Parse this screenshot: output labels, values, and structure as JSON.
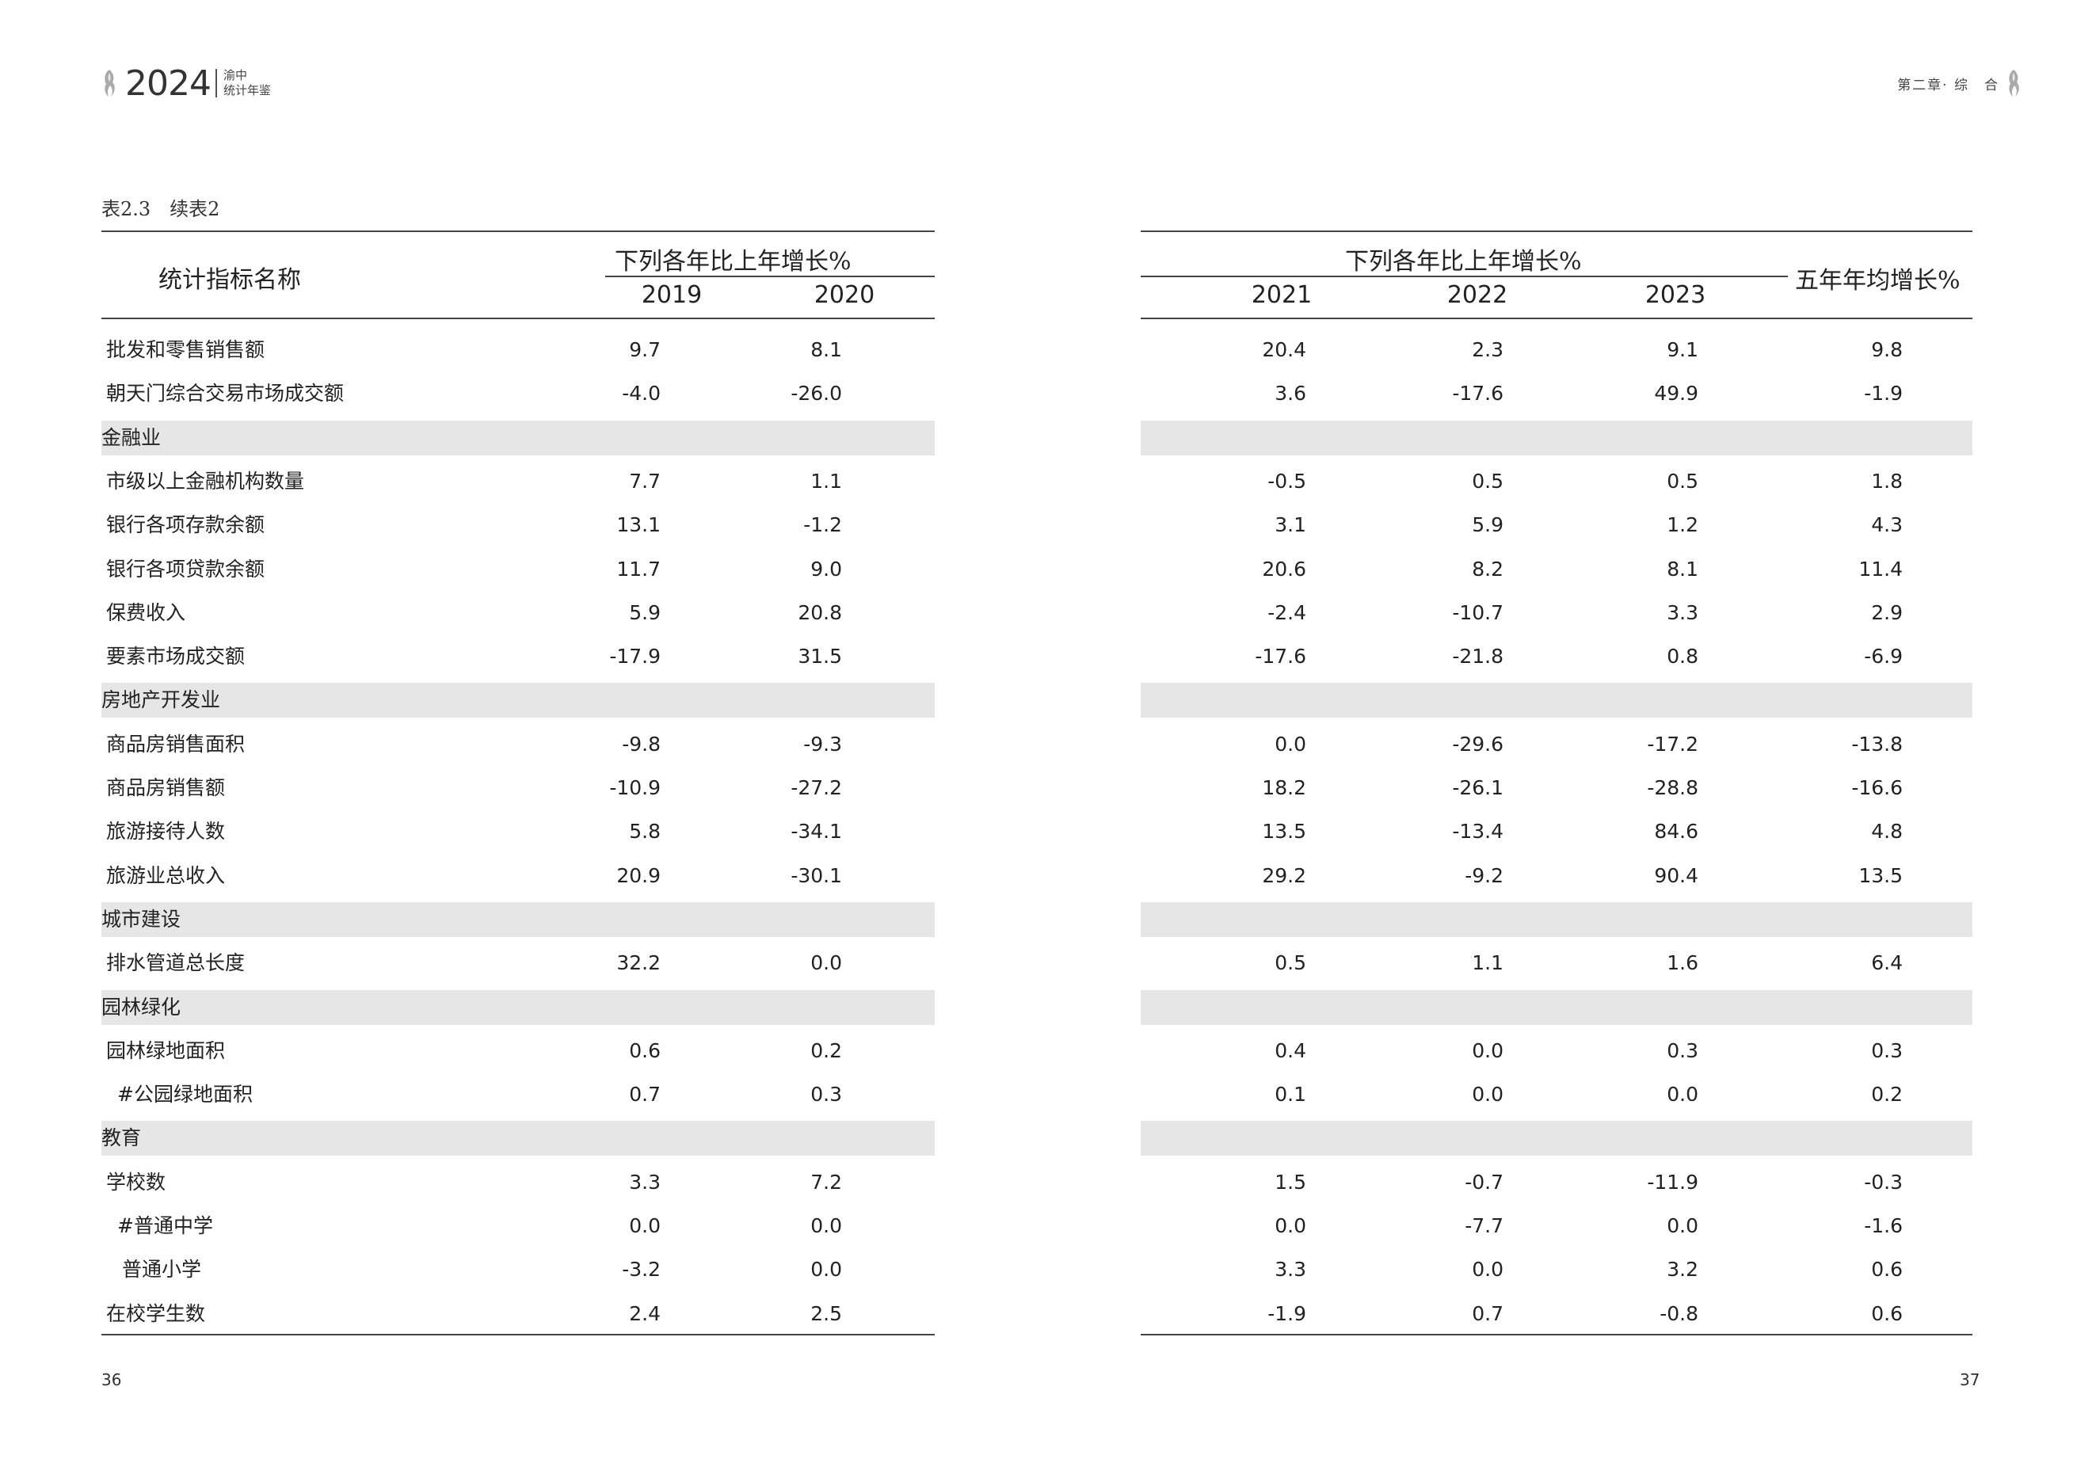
{
  "header": {
    "year": "2024",
    "book_line1": "渝中",
    "book_line2": "统计年鉴",
    "chapter": "第二章· 综　合"
  },
  "caption": "表2.3　续表2",
  "left_table": {
    "indicator_header": "统计指标名称",
    "group_header": "下列各年比上年增长%",
    "years": [
      "2019",
      "2020"
    ]
  },
  "right_table": {
    "group_header": "下列各年比上年增长%",
    "years": [
      "2021",
      "2022",
      "2023"
    ],
    "avg_header": "五年年均增长%"
  },
  "rows": [
    {
      "label": "批发和零售销售额",
      "values": [
        "9.7",
        "8.1",
        "20.4",
        "2.3",
        "9.1",
        "9.8"
      ]
    },
    {
      "label": "朝天门综合交易市场成交额",
      "values": [
        "-4.0",
        "-26.0",
        "3.6",
        "-17.6",
        "49.9",
        "-1.9"
      ]
    },
    {
      "label": "金融业",
      "section": true,
      "values": []
    },
    {
      "label": "市级以上金融机构数量",
      "values": [
        "7.7",
        "1.1",
        "-0.5",
        "0.5",
        "0.5",
        "1.8"
      ]
    },
    {
      "label": "银行各项存款余额",
      "values": [
        "13.1",
        "-1.2",
        "3.1",
        "5.9",
        "1.2",
        "4.3"
      ]
    },
    {
      "label": "银行各项贷款余额",
      "values": [
        "11.7",
        "9.0",
        "20.6",
        "8.2",
        "8.1",
        "11.4"
      ]
    },
    {
      "label": "保费收入",
      "values": [
        "5.9",
        "20.8",
        "-2.4",
        "-10.7",
        "3.3",
        "2.9"
      ]
    },
    {
      "label": "要素市场成交额",
      "values": [
        "-17.9",
        "31.5",
        "-17.6",
        "-21.8",
        "0.8",
        "-6.9"
      ]
    },
    {
      "label": "房地产开发业",
      "section": true,
      "values": []
    },
    {
      "label": "商品房销售面积",
      "values": [
        "-9.8",
        "-9.3",
        "0.0",
        "-29.6",
        "-17.2",
        "-13.8"
      ]
    },
    {
      "label": "商品房销售额",
      "values": [
        "-10.9",
        "-27.2",
        "18.2",
        "-26.1",
        "-28.8",
        "-16.6"
      ]
    },
    {
      "label": "旅游接待人数",
      "values": [
        "5.8",
        "-34.1",
        "13.5",
        "-13.4",
        "84.6",
        "4.8"
      ]
    },
    {
      "label": "旅游业总收入",
      "values": [
        "20.9",
        "-30.1",
        "29.2",
        "-9.2",
        "90.4",
        "13.5"
      ]
    },
    {
      "label": "城市建设",
      "section": true,
      "values": []
    },
    {
      "label": "排水管道总长度",
      "values": [
        "32.2",
        "0.0",
        "0.5",
        "1.1",
        "1.6",
        "6.4"
      ]
    },
    {
      "label": "园林绿化",
      "section": true,
      "values": []
    },
    {
      "label": "园林绿地面积",
      "values": [
        "0.6",
        "0.2",
        "0.4",
        "0.0",
        "0.3",
        "0.3"
      ]
    },
    {
      "label": "#公园绿地面积",
      "values": [
        "0.7",
        "0.3",
        "0.1",
        "0.0",
        "0.0",
        "0.2"
      ]
    },
    {
      "label": "教育",
      "section": true,
      "values": []
    },
    {
      "label": "学校数",
      "values": [
        "3.3",
        "7.2",
        "1.5",
        "-0.7",
        "-11.9",
        "-0.3"
      ]
    },
    {
      "label": "#普通中学",
      "values": [
        "0.0",
        "0.0",
        "0.0",
        "-7.7",
        "0.0",
        "-1.6"
      ]
    },
    {
      "label": "普通小学",
      "values": [
        "-3.2",
        "0.0",
        "3.3",
        "0.0",
        "3.2",
        "0.6"
      ]
    },
    {
      "label": "在校学生数",
      "values": [
        "2.4",
        "2.5",
        "-1.9",
        "0.7",
        "-0.8",
        "0.6"
      ]
    }
  ],
  "page_numbers": {
    "left": "36",
    "right": "37"
  }
}
